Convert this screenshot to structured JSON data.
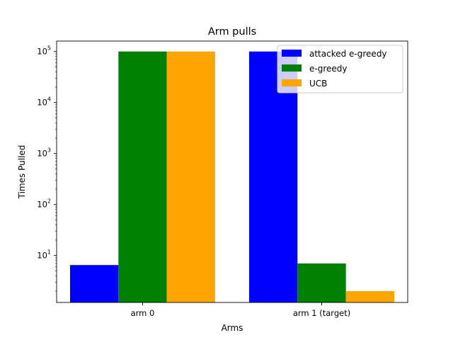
{
  "chart_data": {
    "type": "bar",
    "title": "Arm pulls",
    "xlabel": "Arms",
    "ylabel": "Times Pulled",
    "yscale": "log",
    "ylim": [
      1.2,
      160000
    ],
    "grid": false,
    "legend_position": "top-right",
    "categories": [
      "arm 0",
      "arm 1 (target)"
    ],
    "y_ticks": [
      {
        "base": "10",
        "exp": "1",
        "value": 10
      },
      {
        "base": "10",
        "exp": "2",
        "value": 100
      },
      {
        "base": "10",
        "exp": "3",
        "value": 1000
      },
      {
        "base": "10",
        "exp": "4",
        "value": 10000
      },
      {
        "base": "10",
        "exp": "5",
        "value": 100000
      }
    ],
    "series": [
      {
        "name": "attacked e-greedy",
        "color": "#0000ff",
        "values": [
          6.5,
          100000
        ]
      },
      {
        "name": "e-greedy",
        "color": "#008000",
        "values": [
          100000,
          7
        ]
      },
      {
        "name": "UCB",
        "color": "#ffa500",
        "values": [
          100000,
          2
        ]
      }
    ]
  }
}
